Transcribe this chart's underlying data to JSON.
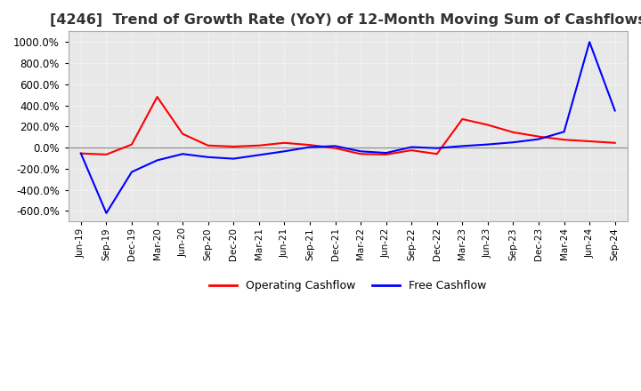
{
  "title": "[4246]  Trend of Growth Rate (YoY) of 12-Month Moving Sum of Cashflows",
  "title_fontsize": 11.5,
  "background_color": "#ffffff",
  "plot_background_color": "#e8e8e8",
  "grid_color": "#ffffff",
  "ylim": [
    -700,
    1100
  ],
  "yticks": [
    -600,
    -400,
    -200,
    0,
    200,
    400,
    600,
    800,
    1000
  ],
  "x_labels": [
    "Jun-19",
    "Sep-19",
    "Dec-19",
    "Mar-20",
    "Jun-20",
    "Sep-20",
    "Dec-20",
    "Mar-21",
    "Jun-21",
    "Sep-21",
    "Dec-21",
    "Mar-22",
    "Jun-22",
    "Sep-22",
    "Dec-22",
    "Mar-23",
    "Jun-23",
    "Sep-23",
    "Dec-23",
    "Mar-24",
    "Jun-24",
    "Sep-24"
  ],
  "operating_cashflow": [
    -55,
    -65,
    30,
    480,
    130,
    20,
    10,
    20,
    45,
    25,
    -5,
    -60,
    -65,
    -25,
    -60,
    270,
    215,
    145,
    105,
    75,
    60,
    45
  ],
  "free_cashflow": [
    -55,
    -620,
    -230,
    -120,
    -60,
    -90,
    -105,
    -70,
    -35,
    5,
    15,
    -35,
    -50,
    5,
    -5,
    15,
    30,
    50,
    80,
    150,
    1000,
    350
  ],
  "op_color": "#ff0000",
  "free_color": "#0000ff",
  "legend_labels": [
    "Operating Cashflow",
    "Free Cashflow"
  ]
}
